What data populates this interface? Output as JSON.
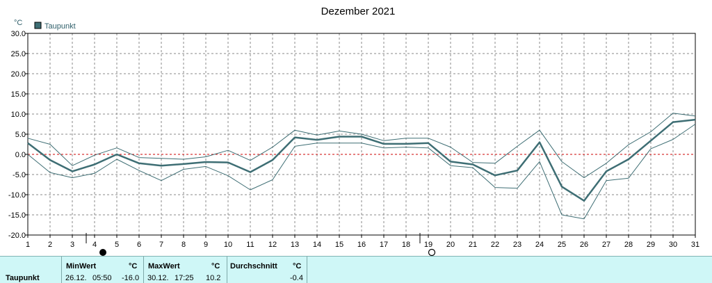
{
  "chart_data": {
    "type": "line",
    "title": "Dezember 2021",
    "unit_label": "°C",
    "legend": {
      "label": "Taupunkt",
      "color": "#3e6e74",
      "placement": "top-left"
    },
    "x": [
      1,
      2,
      3,
      4,
      5,
      6,
      7,
      8,
      9,
      10,
      11,
      12,
      13,
      14,
      15,
      16,
      17,
      18,
      19,
      20,
      21,
      22,
      23,
      24,
      25,
      26,
      27,
      28,
      29,
      30,
      31
    ],
    "ylim": [
      -20,
      30
    ],
    "yticks": [
      "30.0",
      "25.0",
      "20.0",
      "15.0",
      "10.0",
      "5.0",
      "0.0",
      "-5.0",
      "-10.0",
      "-15.0",
      "-20.0"
    ],
    "xticks": [
      "1",
      "2",
      "3",
      "4",
      "5",
      "6",
      "7",
      "8",
      "9",
      "10",
      "11",
      "12",
      "13",
      "14",
      "15",
      "16",
      "17",
      "18",
      "19",
      "20",
      "21",
      "22",
      "23",
      "24",
      "25",
      "26",
      "27",
      "28",
      "29",
      "30",
      "31"
    ],
    "grid": true,
    "zero_line_color": "#cc0000",
    "series": [
      {
        "role": "max",
        "color": "#3e6e74",
        "values": [
          4.0,
          2.5,
          -2.8,
          -0.2,
          1.6,
          -0.8,
          -1.0,
          -1.2,
          -0.6,
          1.0,
          -1.5,
          1.8,
          6.0,
          4.8,
          5.8,
          5.0,
          3.4,
          4.0,
          4.0,
          1.8,
          -2.0,
          -2.2,
          2.0,
          6.0,
          -1.8,
          -5.8,
          -2.2,
          2.4,
          5.6,
          10.2,
          9.5
        ]
      },
      {
        "role": "mean",
        "color": "#3e6e74",
        "values": [
          2.8,
          -1.4,
          -4.2,
          -2.5,
          0.0,
          -2.2,
          -2.8,
          -2.4,
          -1.9,
          -2.0,
          -4.4,
          -1.4,
          4.2,
          3.6,
          4.4,
          4.4,
          2.6,
          2.6,
          2.8,
          -1.8,
          -2.5,
          -5.2,
          -4.0,
          3.0,
          -8.0,
          -11.5,
          -4.2,
          -1.2,
          3.4,
          8.0,
          8.6
        ]
      },
      {
        "role": "min",
        "color": "#3e6e74",
        "values": [
          0.0,
          -4.5,
          -5.8,
          -4.7,
          -1.2,
          -4.0,
          -6.5,
          -3.7,
          -3.0,
          -5.3,
          -8.8,
          -6.3,
          2.0,
          2.8,
          2.8,
          2.8,
          1.6,
          1.8,
          1.6,
          -2.8,
          -3.3,
          -8.2,
          -8.4,
          -1.8,
          -15.0,
          -16.0,
          -6.5,
          -5.9,
          1.4,
          3.7,
          7.5
        ]
      }
    ],
    "moon_markers": [
      {
        "day": 4,
        "phase": "new-moon"
      },
      {
        "day": 19,
        "phase": "full-moon"
      }
    ]
  },
  "stats": {
    "row_label": "Taupunkt",
    "min": {
      "header": "MinWert",
      "unit": "°C",
      "date": "26.12.",
      "time": "05:50",
      "value": "-16.0"
    },
    "max": {
      "header": "MaxWert",
      "unit": "°C",
      "date": "30.12.",
      "time": "17:25",
      "value": "10.2"
    },
    "avg": {
      "header": "Durchschnitt",
      "unit": "°C",
      "value": "-0.4"
    }
  }
}
